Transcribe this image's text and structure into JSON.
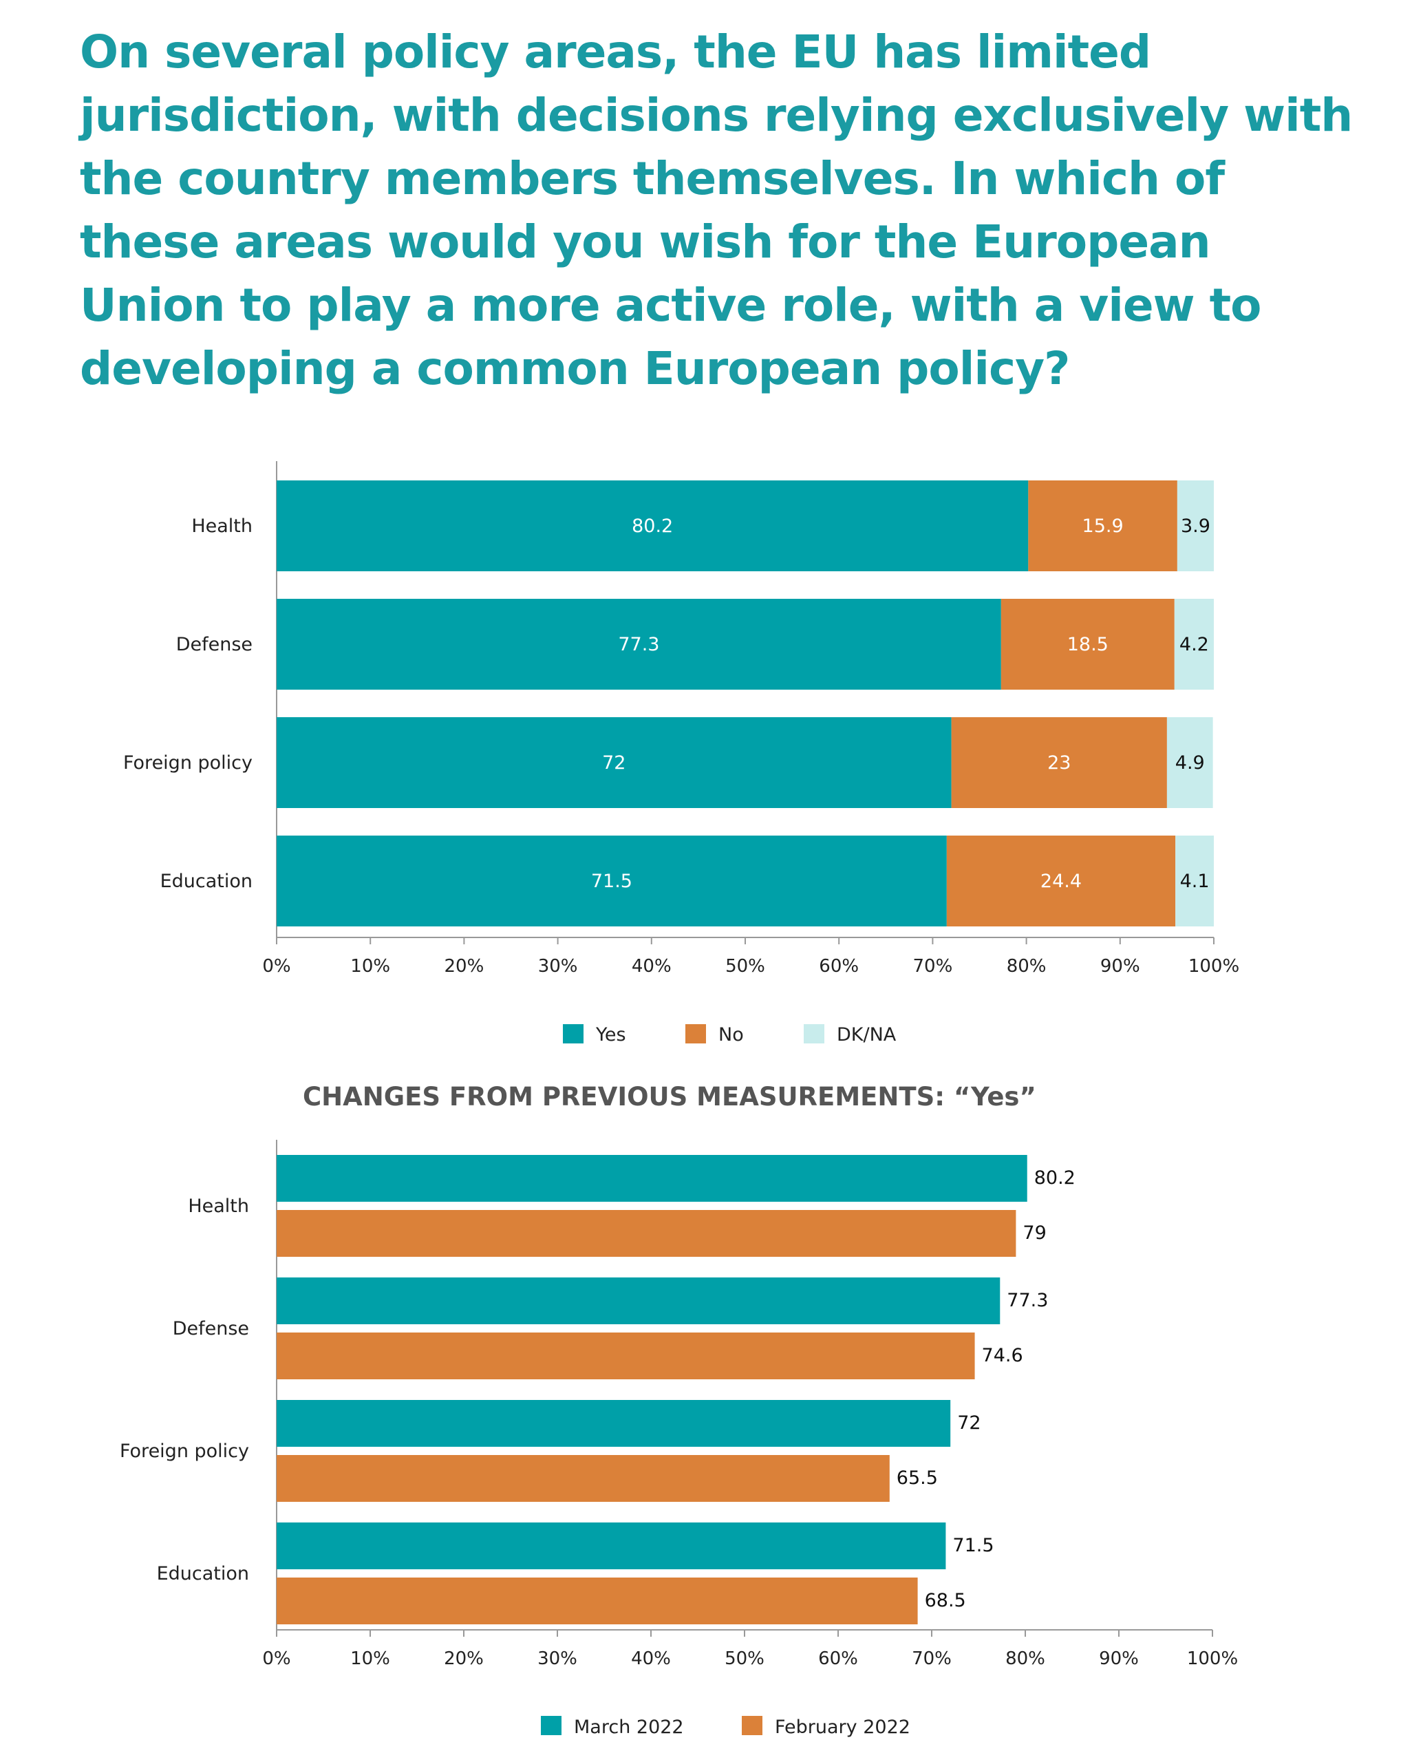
{
  "title": "On several policy areas, the EU has limited jurisdiction, with decisions relying exclusively with the country members themselves. In which of these areas would you wish for the European Union to play a more active role, with a view to developing a common European policy?",
  "colors": {
    "title": "#1a9ba3",
    "teal": "#00a0a8",
    "orange": "#db8139",
    "light": "#c8ecec",
    "subtitle": "#555555"
  },
  "chart_data": [
    {
      "type": "bar",
      "orientation": "horizontal",
      "stacked": true,
      "categories": [
        "Health",
        "Defense",
        "Foreign policy",
        "Education"
      ],
      "series": [
        {
          "name": "Yes",
          "values": [
            80.2,
            77.3,
            72,
            71.5
          ]
        },
        {
          "name": "No",
          "values": [
            15.9,
            18.5,
            23,
            24.4
          ]
        },
        {
          "name": "DK/NA",
          "values": [
            3.9,
            4.2,
            4.9,
            4.1
          ]
        }
      ],
      "xlim": [
        0,
        100
      ],
      "x_ticks": [
        "0%",
        "10%",
        "20%",
        "30%",
        "40%",
        "50%",
        "60%",
        "70%",
        "80%",
        "90%",
        "100%"
      ],
      "legend_position": "bottom",
      "grid": false
    },
    {
      "type": "bar",
      "orientation": "horizontal",
      "stacked": false,
      "title": "CHANGES FROM PREVIOUS MEASUREMENTS: “Yes”",
      "categories": [
        "Health",
        "Defense",
        "Foreign policy",
        "Education"
      ],
      "series": [
        {
          "name": "March 2022",
          "values": [
            80.2,
            77.3,
            72,
            71.5
          ]
        },
        {
          "name": "February 2022",
          "values": [
            79,
            74.6,
            65.5,
            68.5
          ]
        }
      ],
      "xlim": [
        0,
        100
      ],
      "x_ticks": [
        "0%",
        "10%",
        "20%",
        "30%",
        "40%",
        "50%",
        "60%",
        "70%",
        "80%",
        "90%",
        "100%"
      ],
      "legend_position": "bottom",
      "grid": false
    }
  ]
}
